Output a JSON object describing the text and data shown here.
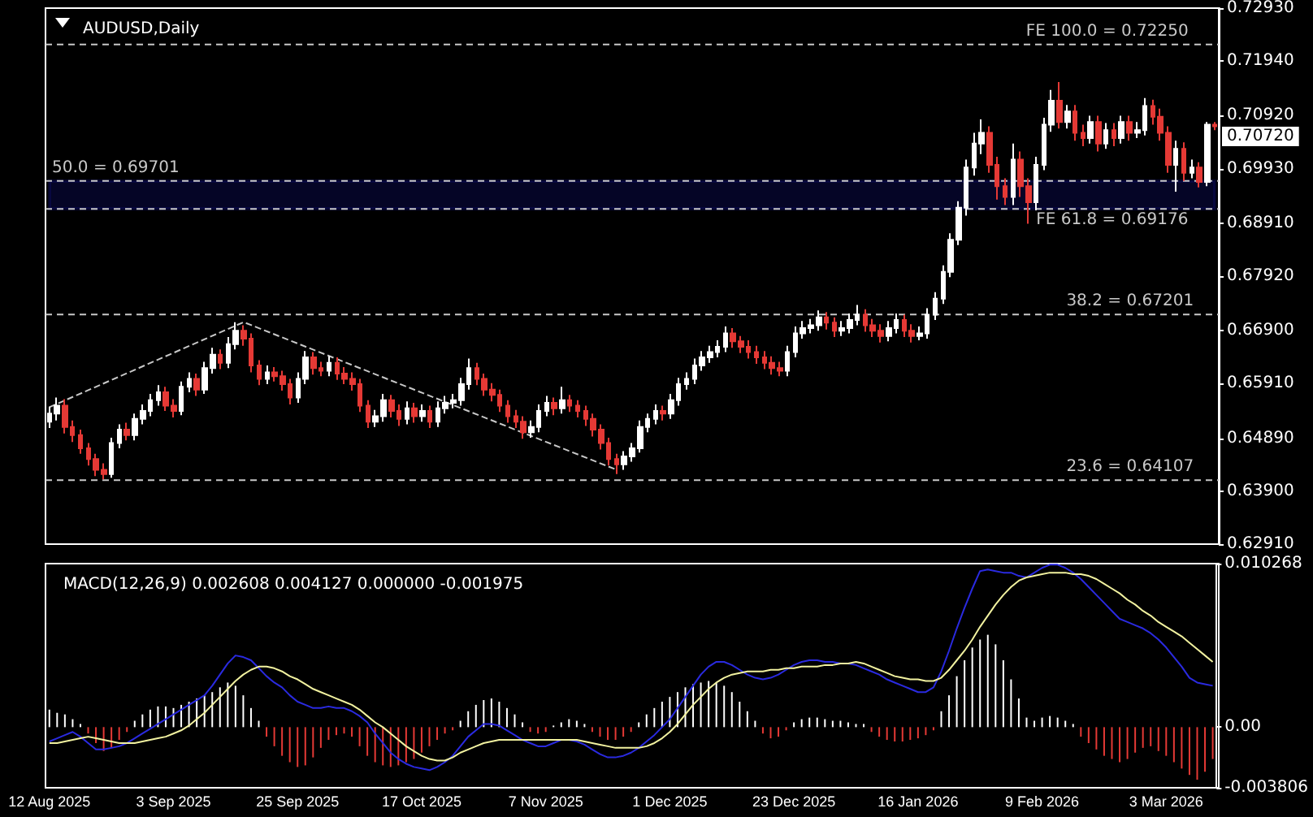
{
  "chart_data": [
    {
      "type": "candlestick",
      "title": "AUDUSD,Daily",
      "tick_labels": "y",
      "categories": [
        null,
        null,
        null,
        null,
        null,
        null,
        null,
        null,
        null,
        null,
        null,
        null,
        null,
        null,
        null,
        null,
        null,
        null,
        null,
        null,
        null,
        null,
        null,
        null,
        null,
        null,
        null,
        null,
        null,
        null,
        null,
        null,
        null,
        null,
        null,
        null,
        null,
        null,
        null,
        null,
        null,
        null,
        null,
        null,
        null,
        null,
        null,
        null,
        null,
        null,
        null,
        null,
        null,
        null,
        null,
        null,
        null,
        null,
        null,
        null,
        null,
        null,
        null,
        null,
        null,
        null,
        null,
        null,
        null,
        null,
        null,
        null,
        null,
        null,
        null,
        null,
        null,
        null,
        null,
        null,
        null,
        null,
        null,
        null,
        null,
        null,
        null,
        null,
        null,
        null,
        null,
        null,
        null,
        null,
        null,
        null,
        null,
        null,
        null,
        null,
        null,
        null,
        null,
        null,
        null,
        null,
        null,
        null,
        null,
        null,
        null,
        null,
        null,
        null,
        null,
        null,
        null,
        null,
        null,
        null,
        null,
        null,
        null,
        null,
        null,
        null,
        null,
        null,
        null,
        null,
        null,
        null,
        null,
        null,
        null,
        null,
        null,
        null,
        null,
        null,
        null,
        null,
        null,
        null,
        null,
        null,
        null,
        null,
        null,
        null,
        null
      ],
      "colors": [
        "#ffffff",
        "#ffffff",
        "#e53935",
        "#e53935",
        "#e53935",
        "#e53935",
        "#e53935",
        "#e53935",
        "#ffffff",
        "#ffffff",
        "#e53935",
        "#ffffff",
        "#ffffff",
        "#ffffff",
        "#ffffff",
        "#e53935",
        "#e53935",
        "#ffffff",
        "#ffffff",
        "#e53935",
        "#ffffff",
        "#ffffff",
        "#e53935",
        "#ffffff",
        "#ffffff",
        "#e53935",
        "#e53935",
        "#e53935",
        "#ffffff",
        "#e53935",
        "#e53935",
        "#e53935",
        "#ffffff",
        "#ffffff",
        "#e53935",
        "#e53935",
        "#ffffff",
        "#e53935",
        "#e53935",
        "#e53935",
        "#e53935",
        "#e53935",
        "#ffffff",
        "#ffffff",
        "#e53935",
        "#e53935",
        "#ffffff",
        "#e53935",
        "#ffffff",
        "#e53935",
        "#ffffff",
        "#ffffff",
        "#ffffff",
        "#ffffff",
        "#ffffff",
        "#e53935",
        "#e53935",
        "#e53935",
        "#e53935",
        "#e53935",
        "#e53935",
        "#e53935",
        "#ffffff",
        "#ffffff",
        "#ffffff",
        "#e53935",
        "#ffffff",
        "#e53935",
        "#e53935",
        "#e53935",
        "#e53935",
        "#e53935",
        "#e53935",
        "#e53935",
        "#ffffff",
        "#ffffff",
        "#ffffff",
        "#ffffff",
        "#ffffff",
        "#e53935",
        "#ffffff",
        "#ffffff",
        "#ffffff",
        "#ffffff",
        "#ffffff",
        "#ffffff",
        "#ffffff",
        "#ffffff",
        "#e53935",
        "#e53935",
        "#e53935",
        "#e53935",
        "#e53935",
        "#e53935",
        "#e53935",
        "#ffffff",
        "#ffffff",
        "#ffffff",
        "#ffffff",
        "#ffffff",
        "#e53935",
        "#e53935",
        "#ffffff",
        "#ffffff",
        "#ffffff",
        "#e53935",
        "#e53935",
        "#e53935",
        "#ffffff",
        "#ffffff",
        "#e53935",
        "#e53935",
        "#ffffff",
        "#ffffff",
        "#ffffff",
        "#ffffff",
        "#ffffff",
        "#ffffff",
        "#ffffff",
        "#ffffff",
        "#ffffff",
        "#e53935",
        "#e53935",
        "#e53935",
        "#ffffff",
        "#e53935",
        "#e53935",
        "#ffffff",
        "#ffffff",
        "#ffffff",
        "#e53935",
        "#ffffff",
        "#e53935",
        "#e53935",
        "#ffffff",
        "#e53935",
        "#ffffff",
        "#e53935",
        "#ffffff",
        "#e53935",
        "#ffffff",
        "#ffffff",
        "#e53935",
        "#e53935",
        "#e53935",
        "#ffffff",
        "#e53935",
        "#ffffff",
        "#e53935",
        "#ffffff",
        "#e53935"
      ],
      "ohlc": [
        [
          0.652,
          0.6548,
          0.6508,
          0.6535
        ],
        [
          0.6535,
          0.6565,
          0.6522,
          0.655
        ],
        [
          0.655,
          0.6562,
          0.6498,
          0.651
        ],
        [
          0.651,
          0.6522,
          0.6482,
          0.6495
        ],
        [
          0.6495,
          0.6505,
          0.646,
          0.647
        ],
        [
          0.647,
          0.648,
          0.6438,
          0.645
        ],
        [
          0.645,
          0.646,
          0.6418,
          0.643
        ],
        [
          0.643,
          0.6442,
          0.6412,
          0.6422
        ],
        [
          0.6422,
          0.649,
          0.6415,
          0.648
        ],
        [
          0.648,
          0.6515,
          0.647,
          0.6505
        ],
        [
          0.6505,
          0.6518,
          0.6485,
          0.6495
        ],
        [
          0.6495,
          0.6535,
          0.6485,
          0.6525
        ],
        [
          0.6525,
          0.6552,
          0.6515,
          0.654
        ],
        [
          0.654,
          0.6572,
          0.653,
          0.656
        ],
        [
          0.656,
          0.6588,
          0.655,
          0.6575
        ],
        [
          0.6575,
          0.6585,
          0.654,
          0.655
        ],
        [
          0.655,
          0.6562,
          0.6528,
          0.654
        ],
        [
          0.654,
          0.6595,
          0.6532,
          0.6585
        ],
        [
          0.6585,
          0.6612,
          0.6575,
          0.66
        ],
        [
          0.66,
          0.661,
          0.6568,
          0.658
        ],
        [
          0.658,
          0.6632,
          0.6572,
          0.662
        ],
        [
          0.662,
          0.6658,
          0.661,
          0.6645
        ],
        [
          0.6645,
          0.6655,
          0.6618,
          0.663
        ],
        [
          0.663,
          0.6678,
          0.662,
          0.6665
        ],
        [
          0.6665,
          0.6706,
          0.6655,
          0.669
        ],
        [
          0.669,
          0.67,
          0.6662,
          0.6675
        ],
        [
          0.6675,
          0.6685,
          0.6612,
          0.6625
        ],
        [
          0.6625,
          0.6635,
          0.6588,
          0.66
        ],
        [
          0.66,
          0.6625,
          0.659,
          0.6612
        ],
        [
          0.6612,
          0.6622,
          0.6595,
          0.6605
        ],
        [
          0.6605,
          0.6615,
          0.6578,
          0.659
        ],
        [
          0.659,
          0.66,
          0.6552,
          0.6565
        ],
        [
          0.6565,
          0.6612,
          0.6555,
          0.66
        ],
        [
          0.66,
          0.6652,
          0.659,
          0.664
        ],
        [
          0.664,
          0.665,
          0.6608,
          0.662
        ],
        [
          0.662,
          0.6632,
          0.6605,
          0.6615
        ],
        [
          0.6615,
          0.6642,
          0.6605,
          0.663
        ],
        [
          0.663,
          0.664,
          0.6598,
          0.661
        ],
        [
          0.661,
          0.6622,
          0.659,
          0.66
        ],
        [
          0.66,
          0.6612,
          0.6578,
          0.659
        ],
        [
          0.659,
          0.66,
          0.6538,
          0.655
        ],
        [
          0.655,
          0.656,
          0.6508,
          0.652
        ],
        [
          0.652,
          0.6542,
          0.651,
          0.653
        ],
        [
          0.653,
          0.6572,
          0.652,
          0.656
        ],
        [
          0.656,
          0.657,
          0.6528,
          0.654
        ],
        [
          0.654,
          0.6552,
          0.6512,
          0.6525
        ],
        [
          0.6525,
          0.6558,
          0.6515,
          0.6545
        ],
        [
          0.6545,
          0.6555,
          0.6518,
          0.653
        ],
        [
          0.653,
          0.6552,
          0.652,
          0.654
        ],
        [
          0.654,
          0.655,
          0.6508,
          0.652
        ],
        [
          0.652,
          0.6558,
          0.651,
          0.6545
        ],
        [
          0.6545,
          0.6568,
          0.6535,
          0.6555
        ],
        [
          0.6555,
          0.6572,
          0.6545,
          0.656
        ],
        [
          0.656,
          0.6602,
          0.655,
          0.659
        ],
        [
          0.659,
          0.6638,
          0.658,
          0.662
        ],
        [
          0.662,
          0.663,
          0.6588,
          0.66
        ],
        [
          0.66,
          0.661,
          0.6568,
          0.658
        ],
        [
          0.658,
          0.6592,
          0.6558,
          0.657
        ],
        [
          0.657,
          0.658,
          0.6538,
          0.655
        ],
        [
          0.655,
          0.656,
          0.6518,
          0.653
        ],
        [
          0.653,
          0.6542,
          0.6508,
          0.652
        ],
        [
          0.652,
          0.653,
          0.6488,
          0.65
        ],
        [
          0.65,
          0.6522,
          0.649,
          0.651
        ],
        [
          0.651,
          0.6552,
          0.65,
          0.654
        ],
        [
          0.654,
          0.6568,
          0.653,
          0.6555
        ],
        [
          0.6555,
          0.6565,
          0.6532,
          0.6545
        ],
        [
          0.6545,
          0.6585,
          0.6535,
          0.656
        ],
        [
          0.656,
          0.657,
          0.6538,
          0.655
        ],
        [
          0.655,
          0.656,
          0.6528,
          0.654
        ],
        [
          0.654,
          0.655,
          0.6512,
          0.6525
        ],
        [
          0.6525,
          0.6535,
          0.6492,
          0.6505
        ],
        [
          0.6505,
          0.6515,
          0.6468,
          0.648
        ],
        [
          0.648,
          0.649,
          0.6438,
          0.645
        ],
        [
          0.645,
          0.646,
          0.6422,
          0.644
        ],
        [
          0.644,
          0.6465,
          0.643,
          0.6455
        ],
        [
          0.6455,
          0.648,
          0.6445,
          0.647
        ],
        [
          0.647,
          0.6522,
          0.6462,
          0.651
        ],
        [
          0.651,
          0.6535,
          0.65,
          0.6525
        ],
        [
          0.6525,
          0.6552,
          0.6515,
          0.654
        ],
        [
          0.654,
          0.655,
          0.6522,
          0.6535
        ],
        [
          0.6535,
          0.6572,
          0.6525,
          0.656
        ],
        [
          0.656,
          0.6602,
          0.655,
          0.659
        ],
        [
          0.659,
          0.6612,
          0.658,
          0.66
        ],
        [
          0.66,
          0.6638,
          0.659,
          0.6625
        ],
        [
          0.6625,
          0.6652,
          0.6615,
          0.664
        ],
        [
          0.664,
          0.6662,
          0.663,
          0.665
        ],
        [
          0.665,
          0.6672,
          0.664,
          0.666
        ],
        [
          0.666,
          0.6698,
          0.665,
          0.6685
        ],
        [
          0.6685,
          0.6695,
          0.6658,
          0.667
        ],
        [
          0.667,
          0.668,
          0.6648,
          0.666
        ],
        [
          0.666,
          0.6672,
          0.6638,
          0.665
        ],
        [
          0.665,
          0.6662,
          0.6628,
          0.664
        ],
        [
          0.664,
          0.6652,
          0.6618,
          0.663
        ],
        [
          0.663,
          0.6642,
          0.6608,
          0.662
        ],
        [
          0.662,
          0.6632,
          0.6605,
          0.6615
        ],
        [
          0.6615,
          0.6662,
          0.6605,
          0.665
        ],
        [
          0.665,
          0.6698,
          0.664,
          0.6685
        ],
        [
          0.6685,
          0.6708,
          0.6675,
          0.6695
        ],
        [
          0.6695,
          0.6712,
          0.6685,
          0.67
        ],
        [
          0.67,
          0.6728,
          0.669,
          0.6715
        ],
        [
          0.6715,
          0.6725,
          0.6692,
          0.6705
        ],
        [
          0.6705,
          0.6715,
          0.6678,
          0.669
        ],
        [
          0.669,
          0.6708,
          0.668,
          0.6695
        ],
        [
          0.6695,
          0.6722,
          0.6685,
          0.671
        ],
        [
          0.671,
          0.6738,
          0.67,
          0.672
        ],
        [
          0.672,
          0.673,
          0.6688,
          0.67
        ],
        [
          0.67,
          0.6712,
          0.6678,
          0.669
        ],
        [
          0.669,
          0.6702,
          0.6668,
          0.668
        ],
        [
          0.668,
          0.6708,
          0.667,
          0.6695
        ],
        [
          0.6695,
          0.6722,
          0.6685,
          0.671
        ],
        [
          0.671,
          0.672,
          0.6678,
          0.669
        ],
        [
          0.669,
          0.6702,
          0.6668,
          0.668
        ],
        [
          0.668,
          0.6698,
          0.6672,
          0.6685
        ],
        [
          0.6685,
          0.6732,
          0.6675,
          0.672
        ],
        [
          0.672,
          0.6762,
          0.671,
          0.675
        ],
        [
          0.675,
          0.6812,
          0.674,
          0.68
        ],
        [
          0.68,
          0.6872,
          0.679,
          0.686
        ],
        [
          0.686,
          0.6932,
          0.685,
          0.692
        ],
        [
          0.692,
          0.701,
          0.6905,
          0.6995
        ],
        [
          0.6995,
          0.706,
          0.698,
          0.704
        ],
        [
          0.704,
          0.7085,
          0.702,
          0.706
        ],
        [
          0.706,
          0.7072,
          0.6985,
          0.7
        ],
        [
          0.7,
          0.7015,
          0.6935,
          0.696
        ],
        [
          0.696,
          0.6975,
          0.6925,
          0.694
        ],
        [
          0.694,
          0.704,
          0.6925,
          0.701
        ],
        [
          0.701,
          0.7025,
          0.694,
          0.696
        ],
        [
          0.696,
          0.6975,
          0.689,
          0.693
        ],
        [
          0.693,
          0.7015,
          0.6915,
          0.7
        ],
        [
          0.7,
          0.7088,
          0.699,
          0.7075
        ],
        [
          0.7075,
          0.714,
          0.7062,
          0.712
        ],
        [
          0.712,
          0.7155,
          0.7068,
          0.708
        ],
        [
          0.708,
          0.7112,
          0.7068,
          0.71
        ],
        [
          0.71,
          0.7112,
          0.7045,
          0.706
        ],
        [
          0.706,
          0.7075,
          0.7035,
          0.705
        ],
        [
          0.705,
          0.7092,
          0.704,
          0.708
        ],
        [
          0.708,
          0.7092,
          0.7025,
          0.704
        ],
        [
          0.704,
          0.7078,
          0.703,
          0.7065
        ],
        [
          0.7065,
          0.7078,
          0.7035,
          0.705
        ],
        [
          0.705,
          0.7092,
          0.704,
          0.708
        ],
        [
          0.708,
          0.7092,
          0.7045,
          0.706
        ],
        [
          0.706,
          0.708,
          0.705,
          0.7065
        ],
        [
          0.7065,
          0.7125,
          0.7055,
          0.711
        ],
        [
          0.711,
          0.7122,
          0.7075,
          0.709
        ],
        [
          0.709,
          0.7105,
          0.7045,
          0.706
        ],
        [
          0.706,
          0.7072,
          0.6985,
          0.7
        ],
        [
          0.7,
          0.7045,
          0.695,
          0.703
        ],
        [
          0.703,
          0.7042,
          0.697,
          0.6985
        ],
        [
          0.6985,
          0.701,
          0.6975,
          0.6995
        ],
        [
          0.6995,
          0.7005,
          0.6958,
          0.6968
        ],
        [
          0.6968,
          0.708,
          0.696,
          0.7075
        ],
        [
          0.7075,
          0.708,
          0.7065,
          0.7072
        ]
      ],
      "series": [
        {
          "type": "line",
          "color": "#c8c8c8",
          "line_style": "dashed",
          "values": [
            0.6547,
            null,
            null,
            null,
            null,
            null,
            null,
            null,
            null,
            null,
            null,
            null,
            null,
            null,
            null,
            null,
            null,
            null,
            null,
            null,
            null,
            null,
            null,
            null,
            null,
            0.6706,
            null,
            null,
            null,
            null,
            null,
            null,
            null,
            null,
            null,
            null,
            null,
            null,
            null,
            null,
            null,
            null,
            null,
            null,
            null,
            null,
            null,
            null,
            null,
            null,
            null,
            null,
            null,
            null,
            null,
            null,
            null,
            null,
            null,
            null,
            null,
            null,
            null,
            null,
            null,
            null,
            null,
            null,
            null,
            null,
            null,
            null,
            null,
            0.643,
            null,
            null,
            null,
            null,
            null,
            null,
            null,
            null,
            null,
            null,
            null,
            null,
            null,
            null,
            null,
            null,
            null,
            null,
            null,
            null,
            null,
            null,
            null,
            null,
            null,
            null,
            null,
            null,
            null,
            null,
            null,
            null,
            null,
            null,
            null,
            null,
            null,
            null,
            null,
            null,
            null,
            null,
            null,
            null,
            null,
            null,
            null,
            null,
            null,
            null,
            null,
            null,
            null,
            null,
            null,
            null,
            null,
            null,
            null,
            null,
            null,
            null,
            null,
            null,
            null,
            null,
            null,
            null,
            null,
            null,
            null,
            null,
            null,
            null,
            null,
            null,
            null
          ]
        }
      ],
      "ylim": [
        0.6291,
        0.7293
      ],
      "yticks": [
        {
          "value": 0.7293,
          "label": "0.72930"
        },
        {
          "value": 0.7194,
          "label": "0.71940"
        },
        {
          "value": 0.7092,
          "label": "0.70920"
        },
        {
          "value": 0.6993,
          "label": "0.69930"
        },
        {
          "value": 0.6891,
          "label": "0.68910"
        },
        {
          "value": 0.6792,
          "label": "0.67920"
        },
        {
          "value": 0.669,
          "label": "0.66900"
        },
        {
          "value": 0.6591,
          "label": "0.65910"
        },
        {
          "value": 0.6489,
          "label": "0.64890"
        },
        {
          "value": 0.639,
          "label": "0.63900"
        },
        {
          "value": 0.6291,
          "label": "0.62910"
        }
      ],
      "ref_lines": [
        {
          "axis": "y",
          "value": 0.7225,
          "label": "FE 100.0 = 0.72250",
          "color": "#c8c8c8",
          "line_style": "dashed"
        },
        {
          "axis": "y",
          "value": 0.69701,
          "label": "50.0 = 0.69701",
          "color": "#c8c8c8",
          "line_style": "dashed"
        },
        {
          "axis": "y",
          "value": 0.69176,
          "label": "FE 61.8 = 0.69176",
          "color": "#c8c8c8",
          "line_style": "dashed"
        },
        {
          "axis": "y",
          "value": 0.67201,
          "label": "38.2 = 0.67201",
          "color": "#c8c8c8",
          "line_style": "dashed"
        },
        {
          "axis": "y",
          "value": 0.64107,
          "label": "23.6 = 0.64107",
          "color": "#c8c8c8",
          "line_style": "dashed"
        }
      ],
      "bands": [
        {
          "axis": "y",
          "from": 0.69176,
          "to": 0.69701,
          "color": "#1a1ad0"
        }
      ],
      "annotations": [
        "0.70720"
      ]
    },
    {
      "type": "bar",
      "title": "MACD(12,26,9) 0.002608 0.004127 0.000000 -0.001975",
      "categories": [
        "12 Aug 2025",
        null,
        null,
        null,
        null,
        null,
        null,
        null,
        null,
        null,
        null,
        null,
        null,
        null,
        null,
        null,
        "3 Sep 2025",
        null,
        null,
        null,
        null,
        null,
        null,
        null,
        null,
        null,
        null,
        null,
        null,
        null,
        null,
        null,
        "25 Sep 2025",
        null,
        null,
        null,
        null,
        null,
        null,
        null,
        null,
        null,
        null,
        null,
        null,
        null,
        null,
        null,
        "17 Oct 2025",
        null,
        null,
        null,
        null,
        null,
        null,
        null,
        null,
        null,
        null,
        null,
        null,
        null,
        null,
        null,
        "7 Nov 2025",
        null,
        null,
        null,
        null,
        null,
        null,
        null,
        null,
        null,
        null,
        null,
        null,
        null,
        null,
        null,
        "1 Dec 2025",
        null,
        null,
        null,
        null,
        null,
        null,
        null,
        null,
        null,
        null,
        null,
        null,
        null,
        null,
        null,
        "23 Dec 2025",
        null,
        null,
        null,
        null,
        null,
        null,
        null,
        null,
        null,
        null,
        null,
        null,
        null,
        null,
        null,
        "16 Jan 2026",
        null,
        null,
        null,
        null,
        null,
        null,
        null,
        null,
        null,
        null,
        null,
        null,
        null,
        null,
        null,
        "9 Feb 2026",
        null,
        null,
        null,
        null,
        null,
        null,
        null,
        null,
        null,
        null,
        null,
        null,
        null,
        null,
        null,
        "3 Mar 2026",
        null,
        null,
        null,
        null,
        null,
        null
      ],
      "ylim": [
        -0.003806,
        0.010268
      ],
      "yticks": [
        {
          "value": 0.010268,
          "label": "0.010268"
        },
        {
          "value": 0,
          "label": "0.00"
        },
        {
          "value": -0.003806,
          "label": "-0.003806"
        }
      ],
      "series": [
        {
          "type": "bar",
          "colors": [
            "#ffffff",
            "#ffffff",
            "#ffffff",
            "#ffffff",
            "#ffffff",
            "#e53935",
            "#e53935",
            "#e53935",
            "#e53935",
            "#e53935",
            "#e53935",
            "#ffffff",
            "#ffffff",
            "#ffffff",
            "#ffffff",
            "#ffffff",
            "#ffffff",
            "#ffffff",
            "#ffffff",
            "#ffffff",
            "#ffffff",
            "#ffffff",
            "#ffffff",
            "#ffffff",
            "#ffffff",
            "#ffffff",
            "#ffffff",
            "#ffffff",
            "#e53935",
            "#e53935",
            "#e53935",
            "#e53935",
            "#e53935",
            "#e53935",
            "#e53935",
            "#e53935",
            "#e53935",
            "#e53935",
            "#e53935",
            "#e53935",
            "#e53935",
            "#e53935",
            "#e53935",
            "#e53935",
            "#e53935",
            "#e53935",
            "#e53935",
            "#e53935",
            "#e53935",
            "#e53935",
            "#e53935",
            "#e53935",
            "#e53935",
            "#ffffff",
            "#ffffff",
            "#ffffff",
            "#ffffff",
            "#ffffff",
            "#ffffff",
            "#ffffff",
            "#ffffff",
            "#ffffff",
            "#e53935",
            "#e53935",
            "#e53935",
            "#ffffff",
            "#ffffff",
            "#ffffff",
            "#ffffff",
            "#ffffff",
            "#e53935",
            "#e53935",
            "#e53935",
            "#e53935",
            "#e53935",
            "#e53935",
            "#ffffff",
            "#ffffff",
            "#ffffff",
            "#ffffff",
            "#ffffff",
            "#ffffff",
            "#ffffff",
            "#ffffff",
            "#ffffff",
            "#ffffff",
            "#ffffff",
            "#ffffff",
            "#ffffff",
            "#ffffff",
            "#ffffff",
            "#ffffff",
            "#e53935",
            "#e53935",
            "#e53935",
            "#e53935",
            "#ffffff",
            "#ffffff",
            "#ffffff",
            "#ffffff",
            "#ffffff",
            "#ffffff",
            "#ffffff",
            "#ffffff",
            "#ffffff",
            "#ffffff",
            "#e53935",
            "#e53935",
            "#e53935",
            "#e53935",
            "#e53935",
            "#e53935",
            "#e53935",
            "#e53935",
            "#e53935",
            "#ffffff",
            "#ffffff",
            "#ffffff",
            "#ffffff",
            "#ffffff",
            "#ffffff",
            "#ffffff",
            "#ffffff",
            "#ffffff",
            "#ffffff",
            "#ffffff",
            "#ffffff",
            "#ffffff",
            "#ffffff",
            "#ffffff",
            "#ffffff",
            "#ffffff",
            "#ffffff",
            "#e53935",
            "#e53935",
            "#e53935",
            "#e53935",
            "#e53935",
            "#e53935",
            "#e53935",
            "#e53935",
            "#e53935",
            "#e53935",
            "#e53935",
            "#e53935",
            "#e53935",
            "#e53935",
            "#e53935",
            "#e53935",
            "#e53935",
            "#e53935"
          ],
          "values": [
            0.0011,
            0.0009,
            0.0008,
            0.0005,
            0.0002,
            -0.0004,
            -0.001,
            -0.0015,
            -0.0013,
            -0.0008,
            -0.0003,
            0.0004,
            0.0008,
            0.0011,
            0.0013,
            0.0013,
            0.0012,
            0.0014,
            0.0016,
            0.0018,
            0.002,
            0.0022,
            0.0025,
            0.0028,
            0.0026,
            0.002,
            0.0012,
            0.0004,
            -0.0006,
            -0.0012,
            -0.0018,
            -0.0022,
            -0.0025,
            -0.0024,
            -0.0019,
            -0.0013,
            -0.0008,
            -0.0005,
            -0.0004,
            -0.0006,
            -0.0012,
            -0.0018,
            -0.0022,
            -0.0024,
            -0.0025,
            -0.0024,
            -0.0022,
            -0.002,
            -0.0016,
            -0.0012,
            -0.0008,
            -0.0004,
            -0.0002,
            0.0004,
            0.001,
            0.0014,
            0.0017,
            0.0018,
            0.0016,
            0.0012,
            0.0008,
            0.0003,
            -0.0003,
            -0.0004,
            -0.0003,
            0.0001,
            0.0003,
            0.0005,
            0.0004,
            0.0002,
            -0.0003,
            -0.0006,
            -0.0008,
            -0.0008,
            -0.0006,
            -0.0003,
            0.0003,
            0.0008,
            0.0012,
            0.0016,
            0.0019,
            0.0022,
            0.0025,
            0.0027,
            0.0028,
            0.0029,
            0.0028,
            0.0026,
            0.0022,
            0.0016,
            0.001,
            0.0004,
            -0.0004,
            -0.0007,
            -0.0006,
            -0.0002,
            0.0003,
            0.0005,
            0.0006,
            0.0006,
            0.0005,
            0.0004,
            0.0004,
            0.0003,
            0.0002,
            0.0002,
            -0.0003,
            -0.0006,
            -0.0008,
            -0.0009,
            -0.0009,
            -0.0008,
            -0.0007,
            -0.0005,
            -0.0002,
            0.001,
            0.002,
            0.0032,
            0.0042,
            0.005,
            0.0055,
            0.0058,
            0.0052,
            0.0042,
            0.003,
            0.0018,
            0.0006,
            0.0004,
            0.0006,
            0.0007,
            0.0006,
            0.0004,
            0.0002,
            -0.0006,
            -0.001,
            -0.0014,
            -0.0018,
            -0.002,
            -0.0022,
            -0.002,
            -0.0016,
            -0.0013,
            -0.0012,
            -0.0015,
            -0.0018,
            -0.0022,
            -0.0026,
            -0.003,
            -0.0033,
            -0.0028,
            -0.002
          ]
        },
        {
          "type": "line",
          "color": "#2a2ae0",
          "values": [
            -0.0009,
            -0.0007,
            -0.0005,
            -0.0003,
            -0.0006,
            -0.001,
            -0.0014,
            -0.0014,
            -0.0013,
            -0.0012,
            -0.001,
            -0.0007,
            -0.0004,
            -0.0001,
            0.0002,
            0.0005,
            0.0008,
            0.0011,
            0.0014,
            0.0017,
            0.002,
            0.0026,
            0.0033,
            0.004,
            0.0045,
            0.0044,
            0.0042,
            0.0037,
            0.0032,
            0.0028,
            0.0025,
            0.002,
            0.0016,
            0.0014,
            0.0012,
            0.0012,
            0.0013,
            0.0012,
            0.0012,
            0.001,
            0.0007,
            0.0003,
            -0.0004,
            -0.001,
            -0.0016,
            -0.002,
            -0.0023,
            -0.0025,
            -0.0026,
            -0.0027,
            -0.0025,
            -0.0022,
            -0.0018,
            -0.0012,
            -0.0006,
            -0.0002,
            0.0002,
            0.0002,
            0.0001,
            -0.0002,
            -0.0005,
            -0.0008,
            -0.001,
            -0.0012,
            -0.0012,
            -0.001,
            -0.0008,
            -0.0008,
            -0.0009,
            -0.0011,
            -0.0014,
            -0.0017,
            -0.0019,
            -0.0019,
            -0.0018,
            -0.0016,
            -0.0013,
            -0.0009,
            -0.0005,
            0.0,
            0.0005,
            0.0012,
            0.0019,
            0.0026,
            0.0033,
            0.0038,
            0.0041,
            0.0041,
            0.0039,
            0.0036,
            0.0033,
            0.0031,
            0.003,
            0.0031,
            0.0033,
            0.0036,
            0.0039,
            0.0041,
            0.0042,
            0.0042,
            0.0041,
            0.0041,
            0.004,
            0.004,
            0.0039,
            0.0037,
            0.0035,
            0.0033,
            0.003,
            0.0028,
            0.0026,
            0.0024,
            0.0022,
            0.0022,
            0.0025,
            0.0035,
            0.0048,
            0.0062,
            0.0075,
            0.0087,
            0.0098,
            0.0099,
            0.0098,
            0.0097,
            0.0097,
            0.0095,
            0.0094,
            0.0097,
            0.01,
            0.0102,
            0.0102,
            0.01,
            0.0097,
            0.0093,
            0.0088,
            0.0083,
            0.0078,
            0.0073,
            0.0068,
            0.0066,
            0.0064,
            0.0062,
            0.0059,
            0.0055,
            0.005,
            0.0044,
            0.0038,
            0.0031,
            0.0028,
            0.0027,
            0.0026
          ]
        },
        {
          "type": "line",
          "color": "#f2f2a0",
          "values": [
            -0.001,
            -0.001,
            -0.0009,
            -0.0008,
            -0.0007,
            -0.0006,
            -0.0007,
            -0.0008,
            -0.0009,
            -0.001,
            -0.001,
            -0.001,
            -0.0009,
            -0.0008,
            -0.0007,
            -0.0006,
            -0.0004,
            -0.0002,
            0.0001,
            0.0005,
            0.0009,
            0.0014,
            0.0019,
            0.0024,
            0.0029,
            0.0033,
            0.0036,
            0.0038,
            0.0038,
            0.0037,
            0.0035,
            0.0032,
            0.003,
            0.0027,
            0.0024,
            0.0022,
            0.002,
            0.0018,
            0.0016,
            0.0014,
            0.0011,
            0.0007,
            0.0003,
            0.0,
            -0.0004,
            -0.0008,
            -0.0012,
            -0.0015,
            -0.0018,
            -0.002,
            -0.0021,
            -0.0021,
            -0.0019,
            -0.0016,
            -0.0014,
            -0.0012,
            -0.001,
            -0.0009,
            -0.0008,
            -0.0008,
            -0.0008,
            -0.0008,
            -0.0008,
            -0.0008,
            -0.0008,
            -0.0008,
            -0.0008,
            -0.0008,
            -0.0008,
            -0.0009,
            -0.001,
            -0.0011,
            -0.0012,
            -0.0013,
            -0.0013,
            -0.0013,
            -0.0013,
            -0.0012,
            -0.001,
            -0.0007,
            -0.0003,
            0.0002,
            0.0008,
            0.0014,
            0.0019,
            0.0024,
            0.0028,
            0.0031,
            0.0033,
            0.0034,
            0.0035,
            0.0035,
            0.0035,
            0.0036,
            0.0036,
            0.0037,
            0.0037,
            0.0038,
            0.0038,
            0.0038,
            0.0039,
            0.0039,
            0.004,
            0.004,
            0.0041,
            0.004,
            0.0038,
            0.0036,
            0.0034,
            0.0032,
            0.0031,
            0.003,
            0.003,
            0.0029,
            0.0029,
            0.0031,
            0.0036,
            0.0042,
            0.0048,
            0.0055,
            0.0063,
            0.007,
            0.0077,
            0.0083,
            0.0088,
            0.0092,
            0.0094,
            0.0095,
            0.0096,
            0.0097,
            0.0097,
            0.0097,
            0.0096,
            0.0096,
            0.0095,
            0.0093,
            0.009,
            0.0087,
            0.0084,
            0.008,
            0.0077,
            0.0073,
            0.007,
            0.0066,
            0.0063,
            0.006,
            0.0057,
            0.0053,
            0.0049,
            0.0045,
            0.0041
          ]
        }
      ]
    }
  ]
}
